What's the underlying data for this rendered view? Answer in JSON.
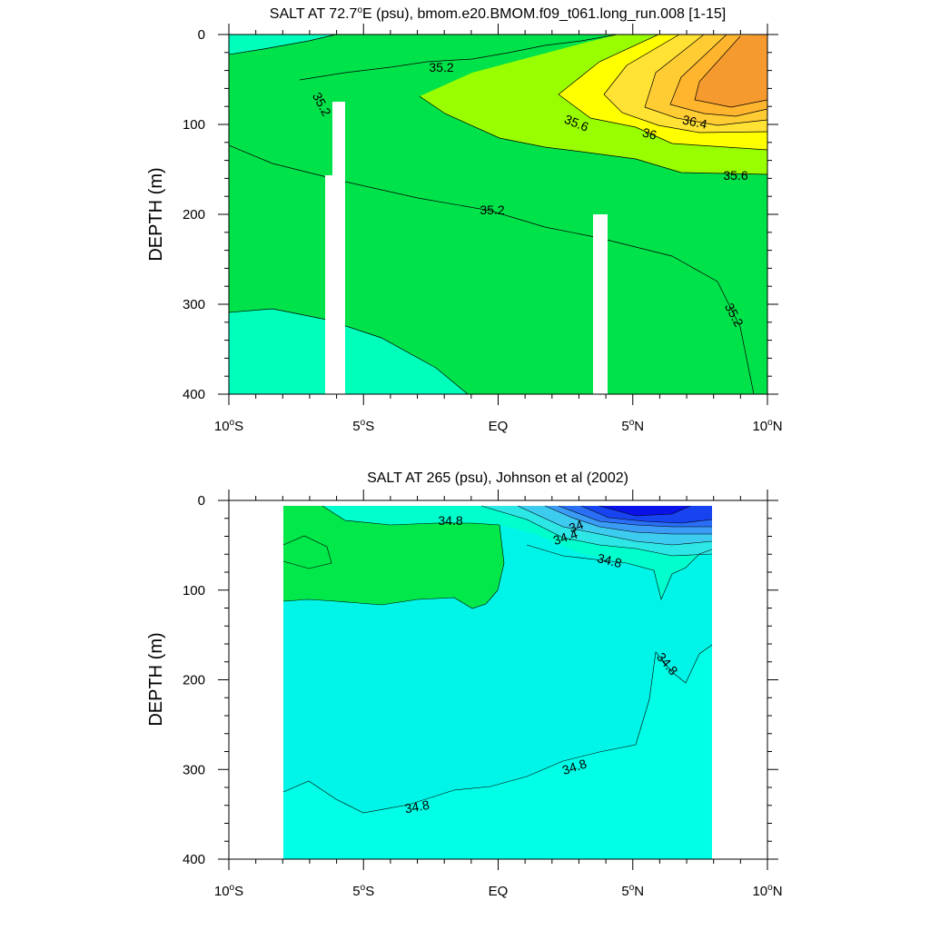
{
  "chart_data": [
    {
      "type": "contour",
      "title_main": "SALT AT  72.7",
      "title_deg": "o",
      "title_rest": "E (psu), bmom.e20.BMOM.f09_t061.long_run.008 [1-15]",
      "ylabel": "DEPTH (m)",
      "xlim": [
        -10,
        10
      ],
      "ylim": [
        0,
        400
      ],
      "y_inverted": true,
      "y_ticks": [
        "0",
        "100",
        "200",
        "300",
        "400"
      ],
      "x_ticks": [
        {
          "num": "10",
          "sup": "o",
          "hem": "S"
        },
        {
          "num": "5",
          "sup": "o",
          "hem": "S"
        },
        {
          "num": "",
          "sup": "",
          "hem": "EQ"
        },
        {
          "num": "5",
          "sup": "o",
          "hem": "N"
        },
        {
          "num": "10",
          "sup": "o",
          "hem": "N"
        }
      ],
      "fill_colors": {
        "lt_35_0": "#00ffbb",
        "35_0_35_4": "#00e24a",
        "35_4_35_6": "#99ff00",
        "35_6_35_8": "#ffff00",
        "35_8_36_0": "#ffe233",
        "36_0_36_2": "#ffcc33",
        "36_2_36_4": "#ffb52e",
        "gt_36_4": "#f59a2e"
      },
      "contour_labels": [
        "35.2",
        "35.2",
        "35.6",
        "36",
        "36.4",
        "35.6",
        "35.2",
        "35.2"
      ]
    },
    {
      "type": "contour",
      "title": "SALT AT 265 (psu), Johnson et al (2002)",
      "ylabel": "DEPTH (m)",
      "xlim": [
        -10,
        10
      ],
      "ylim": [
        0,
        400
      ],
      "y_inverted": true,
      "data_extent_lat": [
        -8,
        8
      ],
      "y_ticks": [
        "0",
        "100",
        "200",
        "300",
        "400"
      ],
      "x_ticks": [
        {
          "num": "10",
          "sup": "o",
          "hem": "S"
        },
        {
          "num": "5",
          "sup": "o",
          "hem": "S"
        },
        {
          "num": "",
          "sup": "",
          "hem": "EQ"
        },
        {
          "num": "5",
          "sup": "o",
          "hem": "N"
        },
        {
          "num": "10",
          "sup": "o",
          "hem": "N"
        }
      ],
      "fill_colors": {
        "lt_33_6": "#0a12e8",
        "33_6_33_8": "#1744f0",
        "33_8_34_0": "#2a6ef5",
        "34_0_34_2": "#3b9cf5",
        "34_2_34_4": "#3ecbf0",
        "34_4_34_6": "#2de6e6",
        "34_6_34_8": "#00ffcc",
        "34_8_35_0": "#00f5e8",
        "gt_35_0": "#00e84a"
      },
      "contour_labels": [
        "34.8",
        "34",
        "34.4",
        "34.8",
        "34.8",
        "34.8",
        "34.8"
      ]
    }
  ]
}
